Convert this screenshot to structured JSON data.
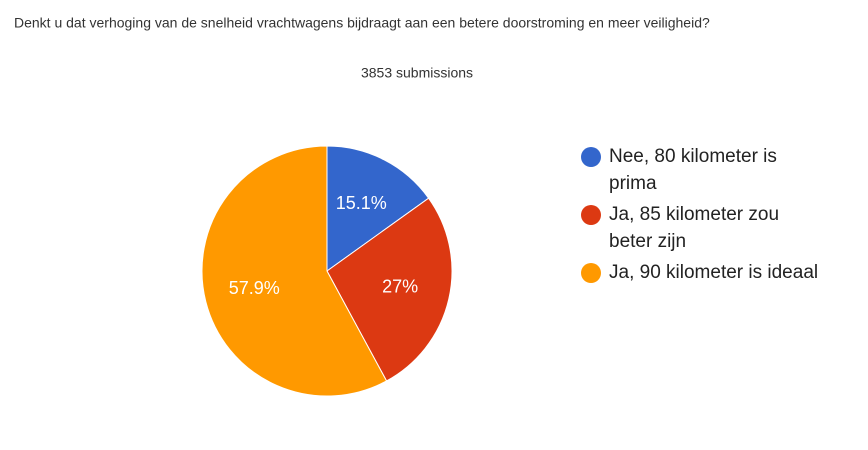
{
  "chart_data": {
    "type": "pie",
    "title": "Denkt u dat verhoging van de snelheid vrachtwagens bijdraagt aan een betere doorstroming en meer veiligheid?",
    "subtitle": "3853 submissions",
    "categories": [
      "Nee, 80 kilometer is prima",
      "Ja, 85 kilometer zou beter zijn",
      "Ja, 90 kilometer is ideaal"
    ],
    "values": [
      15.1,
      27,
      57.9
    ],
    "value_labels": [
      "15.1%",
      "27%",
      "57.9%"
    ],
    "colors": [
      "#3366cc",
      "#dc3912",
      "#ff9900"
    ],
    "legend": "right"
  }
}
